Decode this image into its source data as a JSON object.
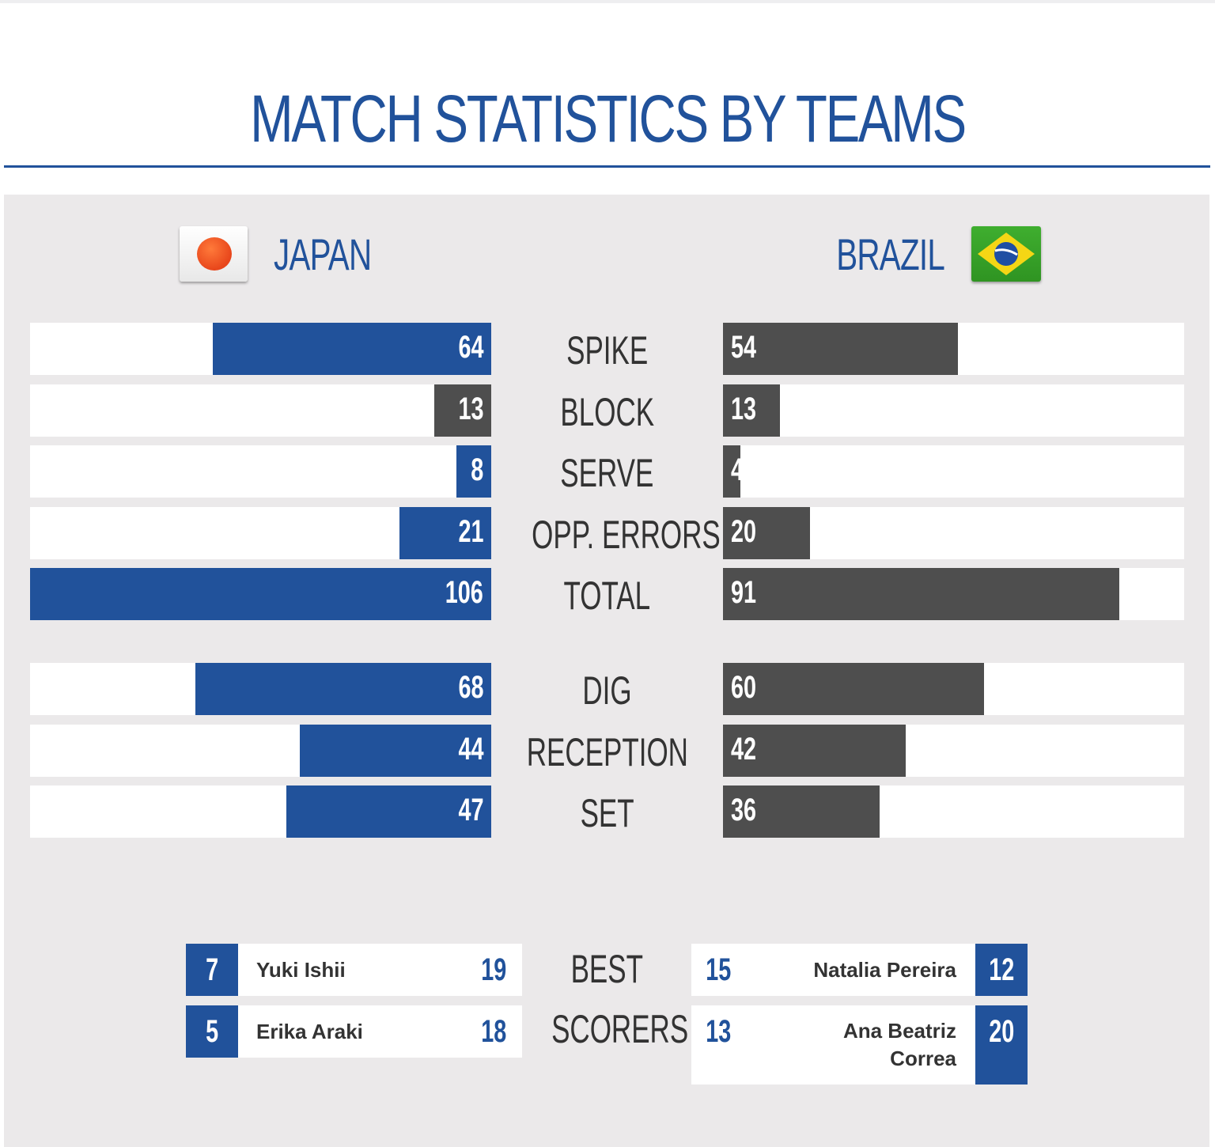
{
  "title": "MATCH STATISTICS BY TEAMS",
  "teams": {
    "left": {
      "name": "JAPAN",
      "flag_icon": "japan-flag-icon",
      "color": "#21529b"
    },
    "right": {
      "name": "BRAZIL",
      "flag_icon": "brazil-flag-icon",
      "color": "#4e4e4e"
    }
  },
  "colors": {
    "accent": "#21529b",
    "opponent": "#4e4e4e",
    "panel": "#ebe9ea"
  },
  "chart_data": {
    "type": "bar",
    "orientation": "horizontal-diverging",
    "categories": [
      "SPIKE",
      "BLOCK",
      "SERVE",
      "OPP. ERRORS",
      "TOTAL",
      "DIG",
      "RECEPTION",
      "SET"
    ],
    "series": [
      {
        "name": "JAPAN",
        "values": [
          64,
          13,
          8,
          21,
          106,
          68,
          44,
          47
        ]
      },
      {
        "name": "BRAZIL",
        "values": [
          54,
          13,
          4,
          20,
          91,
          60,
          42,
          36
        ]
      }
    ],
    "xlim": [
      0,
      106
    ]
  },
  "best_scorers": {
    "label_line1": "BEST",
    "label_line2": "SCORERS",
    "left": [
      {
        "number": "7",
        "name": "Yuki Ishii",
        "points": "19"
      },
      {
        "number": "5",
        "name": "Erika Araki",
        "points": "18"
      }
    ],
    "right": [
      {
        "number": "12",
        "name": "Natalia Pereira",
        "points": "15"
      },
      {
        "number": "20",
        "name_line1": "Ana Beatriz",
        "name_line2": "Correa",
        "points": "13"
      }
    ]
  }
}
